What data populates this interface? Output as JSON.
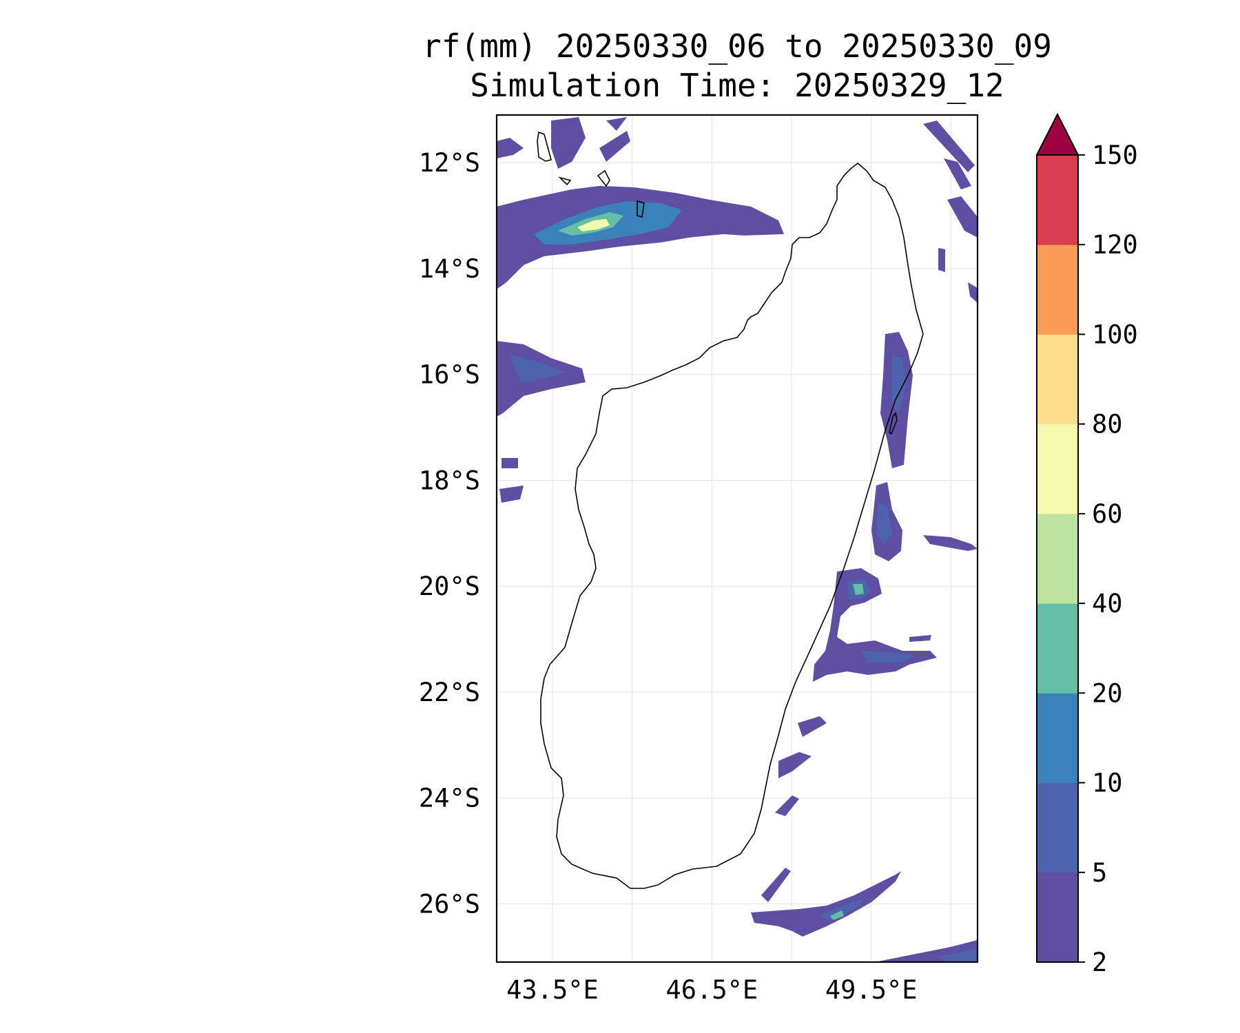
{
  "title": {
    "line1": "rf(mm) 20250330_06 to 20250330_09",
    "line2": "Simulation Time: 20250329_12"
  },
  "map": {
    "lat_ticks": [
      "12°S",
      "14°S",
      "16°S",
      "18°S",
      "20°S",
      "22°S",
      "24°S",
      "26°S"
    ],
    "lon_ticks": [
      "43.5°E",
      "46.5°E",
      "49.5°E"
    ],
    "extent": {
      "lon": [
        42.45,
        51.5
      ],
      "lat": [
        -27.1,
        -11.1
      ]
    },
    "gridlines": true
  },
  "colorbar": {
    "ticks": [
      "2",
      "5",
      "10",
      "20",
      "40",
      "60",
      "80",
      "100",
      "120",
      "150"
    ],
    "colors": [
      "#5e4fa2",
      "#4e63ad",
      "#3a80b9",
      "#63c0a6",
      "#bde3a0",
      "#f4faad",
      "#fcdd88",
      "#fa9c59",
      "#d6404e",
      "#9e0142"
    ],
    "extend": "max"
  }
}
